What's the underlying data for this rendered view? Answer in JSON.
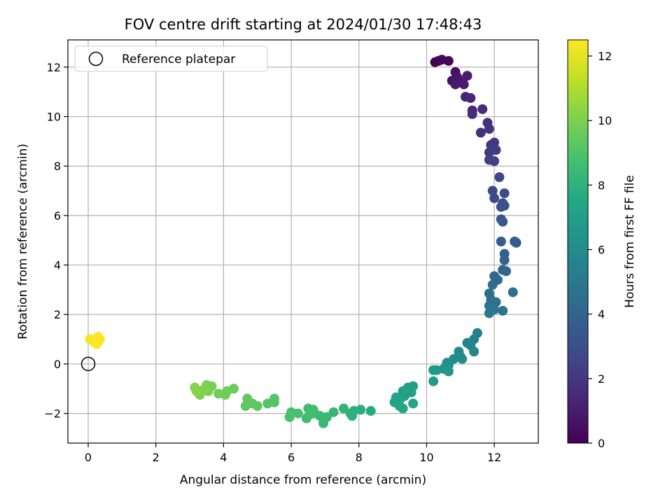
{
  "chart_data": {
    "type": "scatter",
    "title": "FOV centre drift starting at 2024/01/30 17:48:43",
    "xlabel": "Angular distance from reference (arcmin)",
    "ylabel": "Rotation from reference (arcmin)",
    "xlim": [
      -0.6,
      13.3
    ],
    "ylim": [
      -3.2,
      13.1
    ],
    "xticks": [
      0,
      2,
      4,
      6,
      8,
      10,
      12
    ],
    "yticks": [
      -2,
      0,
      2,
      4,
      6,
      8,
      10,
      12
    ],
    "grid": true,
    "legend": {
      "position": "top-left",
      "entries": [
        "Reference platepar"
      ]
    },
    "reference_point": {
      "x": 0,
      "y": 0
    },
    "colorbar": {
      "label": "Hours from first FF file",
      "range": [
        0,
        12.5
      ],
      "ticks": [
        0,
        2,
        4,
        6,
        8,
        10,
        12
      ],
      "colormap": "viridis"
    },
    "points": [
      {
        "x": 10.25,
        "y": 12.2,
        "c": 0.0
      },
      {
        "x": 10.35,
        "y": 12.25,
        "c": 0.1
      },
      {
        "x": 10.45,
        "y": 12.3,
        "c": 0.2
      },
      {
        "x": 10.65,
        "y": 12.25,
        "c": 0.3
      },
      {
        "x": 10.85,
        "y": 11.8,
        "c": 0.5
      },
      {
        "x": 10.75,
        "y": 11.45,
        "c": 0.6
      },
      {
        "x": 10.9,
        "y": 11.6,
        "c": 0.7
      },
      {
        "x": 11.0,
        "y": 11.45,
        "c": 0.8
      },
      {
        "x": 10.85,
        "y": 11.3,
        "c": 0.9
      },
      {
        "x": 11.1,
        "y": 11.3,
        "c": 1.0
      },
      {
        "x": 11.2,
        "y": 11.65,
        "c": 1.0
      },
      {
        "x": 11.15,
        "y": 10.8,
        "c": 1.2
      },
      {
        "x": 11.3,
        "y": 10.75,
        "c": 1.3
      },
      {
        "x": 11.35,
        "y": 10.25,
        "c": 1.4
      },
      {
        "x": 11.35,
        "y": 10.1,
        "c": 1.5
      },
      {
        "x": 11.65,
        "y": 10.3,
        "c": 1.6
      },
      {
        "x": 11.6,
        "y": 9.35,
        "c": 1.7
      },
      {
        "x": 11.8,
        "y": 9.75,
        "c": 1.8
      },
      {
        "x": 11.85,
        "y": 9.5,
        "c": 1.9
      },
      {
        "x": 11.9,
        "y": 8.85,
        "c": 2.0
      },
      {
        "x": 12.0,
        "y": 8.95,
        "c": 2.0
      },
      {
        "x": 11.85,
        "y": 8.55,
        "c": 2.1
      },
      {
        "x": 12.05,
        "y": 8.65,
        "c": 2.2
      },
      {
        "x": 11.85,
        "y": 8.25,
        "c": 2.3
      },
      {
        "x": 12.0,
        "y": 8.2,
        "c": 2.4
      },
      {
        "x": 12.15,
        "y": 7.55,
        "c": 2.6
      },
      {
        "x": 11.95,
        "y": 7.0,
        "c": 2.7
      },
      {
        "x": 12.0,
        "y": 6.7,
        "c": 2.8
      },
      {
        "x": 12.3,
        "y": 6.9,
        "c": 2.9
      },
      {
        "x": 12.25,
        "y": 6.5,
        "c": 3.0
      },
      {
        "x": 12.2,
        "y": 6.35,
        "c": 3.1
      },
      {
        "x": 12.3,
        "y": 6.4,
        "c": 3.2
      },
      {
        "x": 12.2,
        "y": 5.85,
        "c": 3.3
      },
      {
        "x": 12.25,
        "y": 5.75,
        "c": 3.4
      },
      {
        "x": 12.2,
        "y": 4.95,
        "c": 3.6
      },
      {
        "x": 12.6,
        "y": 4.95,
        "c": 3.7
      },
      {
        "x": 12.65,
        "y": 4.9,
        "c": 3.7
      },
      {
        "x": 12.3,
        "y": 4.45,
        "c": 3.8
      },
      {
        "x": 12.3,
        "y": 4.2,
        "c": 3.9
      },
      {
        "x": 12.25,
        "y": 3.8,
        "c": 4.0
      },
      {
        "x": 12.35,
        "y": 3.75,
        "c": 4.1
      },
      {
        "x": 12.0,
        "y": 3.55,
        "c": 4.2
      },
      {
        "x": 12.1,
        "y": 3.4,
        "c": 4.3
      },
      {
        "x": 11.95,
        "y": 3.2,
        "c": 4.4
      },
      {
        "x": 11.85,
        "y": 2.85,
        "c": 4.5
      },
      {
        "x": 12.55,
        "y": 2.9,
        "c": 4.5
      },
      {
        "x": 11.9,
        "y": 2.6,
        "c": 4.6
      },
      {
        "x": 12.05,
        "y": 2.5,
        "c": 4.7
      },
      {
        "x": 11.85,
        "y": 2.35,
        "c": 4.8
      },
      {
        "x": 12.0,
        "y": 2.2,
        "c": 4.9
      },
      {
        "x": 12.25,
        "y": 2.15,
        "c": 4.9
      },
      {
        "x": 11.85,
        "y": 2.05,
        "c": 5.0
      },
      {
        "x": 11.5,
        "y": 1.25,
        "c": 5.3
      },
      {
        "x": 11.4,
        "y": 1.0,
        "c": 5.4
      },
      {
        "x": 11.2,
        "y": 0.85,
        "c": 5.5
      },
      {
        "x": 11.3,
        "y": 0.75,
        "c": 5.6
      },
      {
        "x": 11.4,
        "y": 0.5,
        "c": 5.7
      },
      {
        "x": 10.95,
        "y": 0.5,
        "c": 5.8
      },
      {
        "x": 11.0,
        "y": 0.3,
        "c": 5.9
      },
      {
        "x": 10.8,
        "y": 0.2,
        "c": 6.0
      },
      {
        "x": 11.05,
        "y": 0.2,
        "c": 6.1
      },
      {
        "x": 10.6,
        "y": 0.05,
        "c": 6.2
      },
      {
        "x": 10.65,
        "y": -0.05,
        "c": 6.3
      },
      {
        "x": 10.5,
        "y": -0.2,
        "c": 6.4
      },
      {
        "x": 10.65,
        "y": -0.3,
        "c": 6.5
      },
      {
        "x": 10.3,
        "y": -0.25,
        "c": 6.6
      },
      {
        "x": 10.2,
        "y": -0.25,
        "c": 6.7
      },
      {
        "x": 10.2,
        "y": -0.7,
        "c": 6.8
      },
      {
        "x": 9.6,
        "y": -0.9,
        "c": 6.9
      },
      {
        "x": 9.45,
        "y": -0.95,
        "c": 7.0
      },
      {
        "x": 9.3,
        "y": -1.1,
        "c": 7.0
      },
      {
        "x": 9.55,
        "y": -1.15,
        "c": 7.1
      },
      {
        "x": 9.35,
        "y": -1.3,
        "c": 7.1
      },
      {
        "x": 9.1,
        "y": -1.35,
        "c": 7.2
      },
      {
        "x": 9.2,
        "y": -1.45,
        "c": 7.2
      },
      {
        "x": 9.05,
        "y": -1.55,
        "c": 7.3
      },
      {
        "x": 9.6,
        "y": -1.6,
        "c": 7.3
      },
      {
        "x": 9.2,
        "y": -1.7,
        "c": 7.4
      },
      {
        "x": 9.3,
        "y": -1.8,
        "c": 7.4
      },
      {
        "x": 8.35,
        "y": -1.9,
        "c": 7.7
      },
      {
        "x": 8.05,
        "y": -1.85,
        "c": 7.8
      },
      {
        "x": 7.85,
        "y": -1.9,
        "c": 7.9
      },
      {
        "x": 7.75,
        "y": -2.0,
        "c": 7.9
      },
      {
        "x": 7.8,
        "y": -2.1,
        "c": 8.0
      },
      {
        "x": 7.55,
        "y": -1.8,
        "c": 8.1
      },
      {
        "x": 7.25,
        "y": -1.95,
        "c": 8.2
      },
      {
        "x": 7.05,
        "y": -2.15,
        "c": 8.3
      },
      {
        "x": 6.95,
        "y": -2.4,
        "c": 8.4
      },
      {
        "x": 6.85,
        "y": -2.1,
        "c": 8.4
      },
      {
        "x": 6.7,
        "y": -2.0,
        "c": 8.5
      },
      {
        "x": 6.65,
        "y": -1.85,
        "c": 8.5
      },
      {
        "x": 6.5,
        "y": -1.8,
        "c": 8.6
      },
      {
        "x": 6.45,
        "y": -2.2,
        "c": 8.6
      },
      {
        "x": 6.55,
        "y": -2.05,
        "c": 8.7
      },
      {
        "x": 6.2,
        "y": -2.0,
        "c": 8.8
      },
      {
        "x": 6.0,
        "y": -1.95,
        "c": 8.8
      },
      {
        "x": 5.95,
        "y": -2.15,
        "c": 8.9
      },
      {
        "x": 5.5,
        "y": -1.4,
        "c": 9.1
      },
      {
        "x": 5.5,
        "y": -1.55,
        "c": 9.1
      },
      {
        "x": 5.3,
        "y": -1.6,
        "c": 9.2
      },
      {
        "x": 5.0,
        "y": -1.7,
        "c": 9.3
      },
      {
        "x": 4.85,
        "y": -1.6,
        "c": 9.3
      },
      {
        "x": 4.7,
        "y": -1.4,
        "c": 9.4
      },
      {
        "x": 4.65,
        "y": -1.7,
        "c": 9.4
      },
      {
        "x": 4.3,
        "y": -1.0,
        "c": 9.6
      },
      {
        "x": 4.1,
        "y": -1.1,
        "c": 9.7
      },
      {
        "x": 4.05,
        "y": -1.25,
        "c": 9.7
      },
      {
        "x": 3.85,
        "y": -1.2,
        "c": 9.8
      },
      {
        "x": 3.65,
        "y": -0.9,
        "c": 9.9
      },
      {
        "x": 3.5,
        "y": -0.85,
        "c": 10.0
      },
      {
        "x": 3.55,
        "y": -1.1,
        "c": 10.0
      },
      {
        "x": 3.4,
        "y": -1.05,
        "c": 10.1
      },
      {
        "x": 3.3,
        "y": -1.25,
        "c": 10.1
      },
      {
        "x": 3.2,
        "y": -1.1,
        "c": 10.2
      },
      {
        "x": 3.15,
        "y": -0.95,
        "c": 10.2
      },
      {
        "x": 0.05,
        "y": 1.0,
        "c": 12.3
      },
      {
        "x": 0.15,
        "y": 0.95,
        "c": 12.3
      },
      {
        "x": 0.25,
        "y": 1.05,
        "c": 12.4
      },
      {
        "x": 0.3,
        "y": 0.9,
        "c": 12.4
      },
      {
        "x": 0.2,
        "y": 0.85,
        "c": 12.4
      },
      {
        "x": 0.3,
        "y": 1.1,
        "c": 12.5
      },
      {
        "x": 0.25,
        "y": 0.8,
        "c": 12.5
      },
      {
        "x": 0.35,
        "y": 1.0,
        "c": 12.5
      }
    ]
  }
}
